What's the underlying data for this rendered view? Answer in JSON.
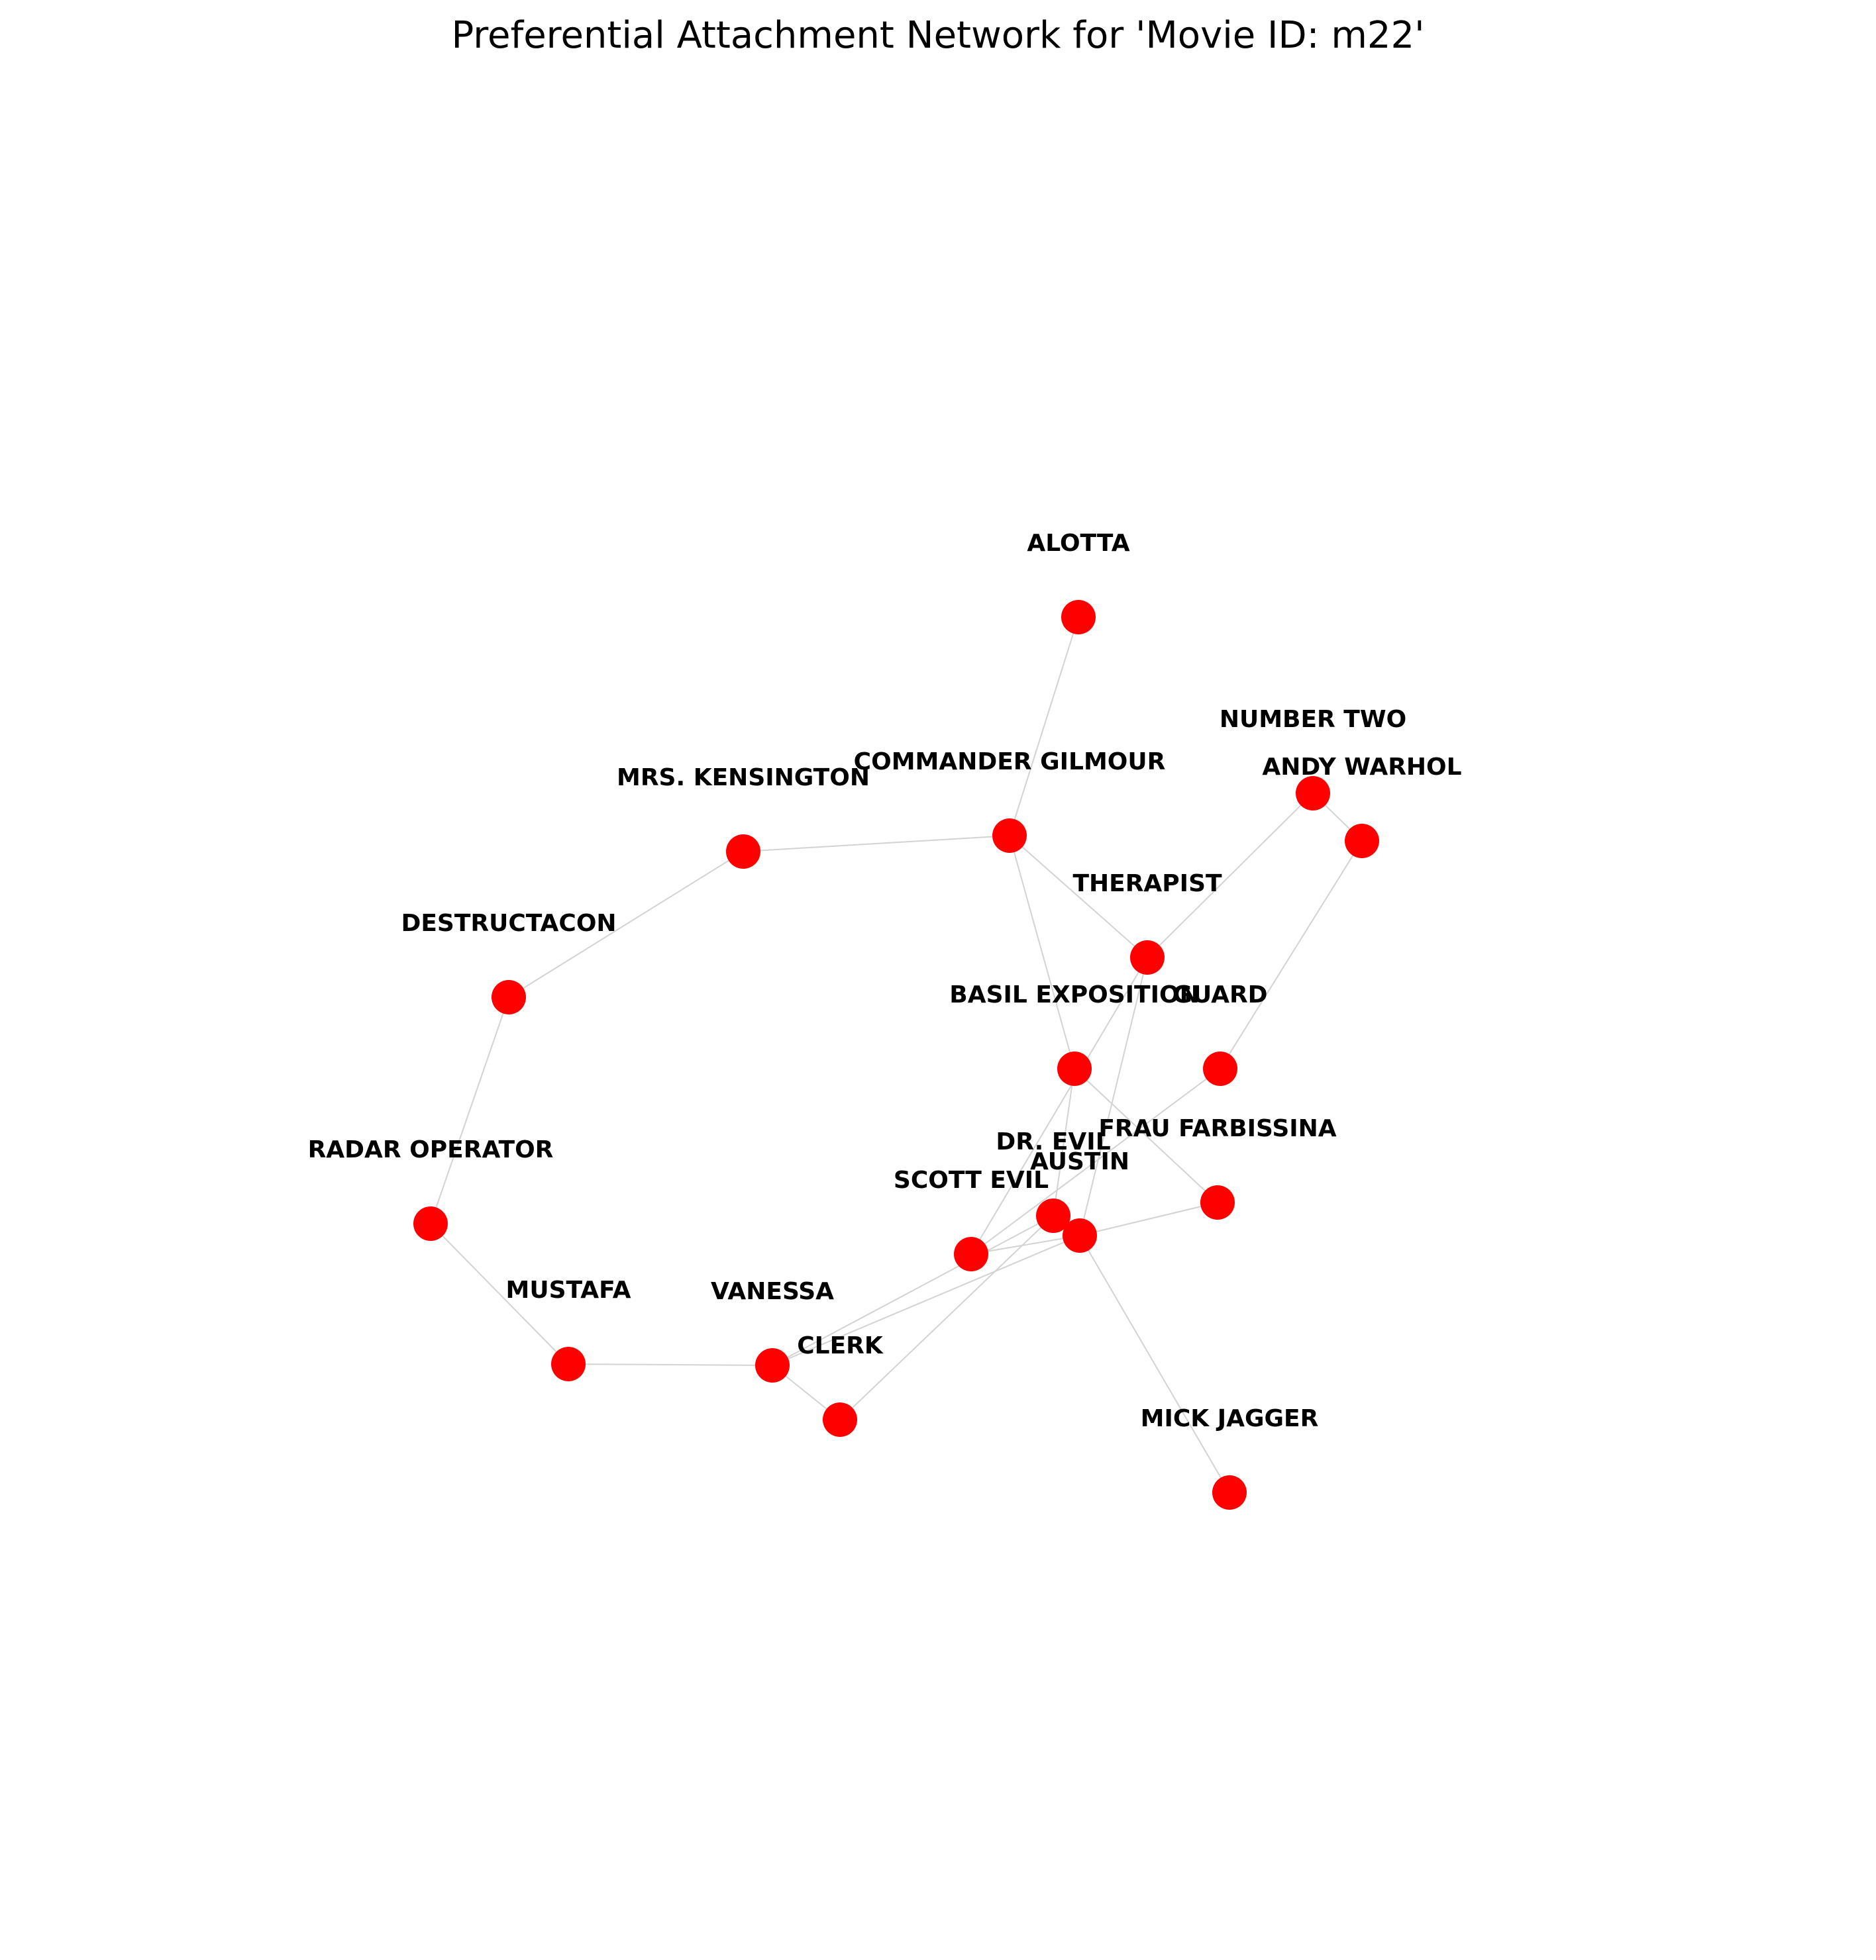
{
  "title": "Preferential Attachment Network for 'Movie ID: m22'",
  "colors": {
    "node": "#ff0000",
    "edge": "#d3d3d3",
    "label": "#000000"
  },
  "nodes": [
    {
      "id": "alotta",
      "label": "ALOTTA"
    },
    {
      "id": "number_two",
      "label": "NUMBER TWO"
    },
    {
      "id": "andy_warhol",
      "label": "ANDY WARHOL"
    },
    {
      "id": "commander_gilmour",
      "label": "COMMANDER GILMOUR"
    },
    {
      "id": "mrs_kensington",
      "label": "MRS. KENSINGTON"
    },
    {
      "id": "therapist",
      "label": "THERAPIST"
    },
    {
      "id": "destructacon",
      "label": "DESTRUCTACON"
    },
    {
      "id": "basil_exposition",
      "label": "BASIL EXPOSITION"
    },
    {
      "id": "guard",
      "label": "GUARD"
    },
    {
      "id": "frau_farbissina",
      "label": "FRAU FARBISSINA"
    },
    {
      "id": "dr_evil",
      "label": "DR. EVIL"
    },
    {
      "id": "austin",
      "label": "AUSTIN"
    },
    {
      "id": "scott_evil",
      "label": "SCOTT EVIL"
    },
    {
      "id": "radar_operator",
      "label": "RADAR OPERATOR"
    },
    {
      "id": "mustafa",
      "label": "MUSTAFA"
    },
    {
      "id": "vanessa",
      "label": "VANESSA"
    },
    {
      "id": "clerk",
      "label": "CLERK"
    },
    {
      "id": "mick_jagger",
      "label": "MICK JAGGER"
    }
  ],
  "edges": [
    [
      "alotta",
      "commander_gilmour"
    ],
    [
      "commander_gilmour",
      "mrs_kensington"
    ],
    [
      "commander_gilmour",
      "therapist"
    ],
    [
      "commander_gilmour",
      "basil_exposition"
    ],
    [
      "mrs_kensington",
      "destructacon"
    ],
    [
      "destructacon",
      "radar_operator"
    ],
    [
      "radar_operator",
      "mustafa"
    ],
    [
      "mustafa",
      "vanessa"
    ],
    [
      "vanessa",
      "clerk"
    ],
    [
      "vanessa",
      "austin"
    ],
    [
      "number_two",
      "therapist"
    ],
    [
      "number_two",
      "andy_warhol"
    ],
    [
      "andy_warhol",
      "guard"
    ],
    [
      "guard",
      "scott_evil"
    ],
    [
      "therapist",
      "austin"
    ],
    [
      "therapist",
      "scott_evil"
    ],
    [
      "basil_exposition",
      "dr_evil"
    ],
    [
      "basil_exposition",
      "frau_farbissina"
    ],
    [
      "frau_farbissina",
      "austin"
    ],
    [
      "austin",
      "scott_evil"
    ],
    [
      "austin",
      "mick_jagger"
    ],
    [
      "dr_evil",
      "vanessa"
    ],
    [
      "dr_evil",
      "clerk"
    ]
  ]
}
